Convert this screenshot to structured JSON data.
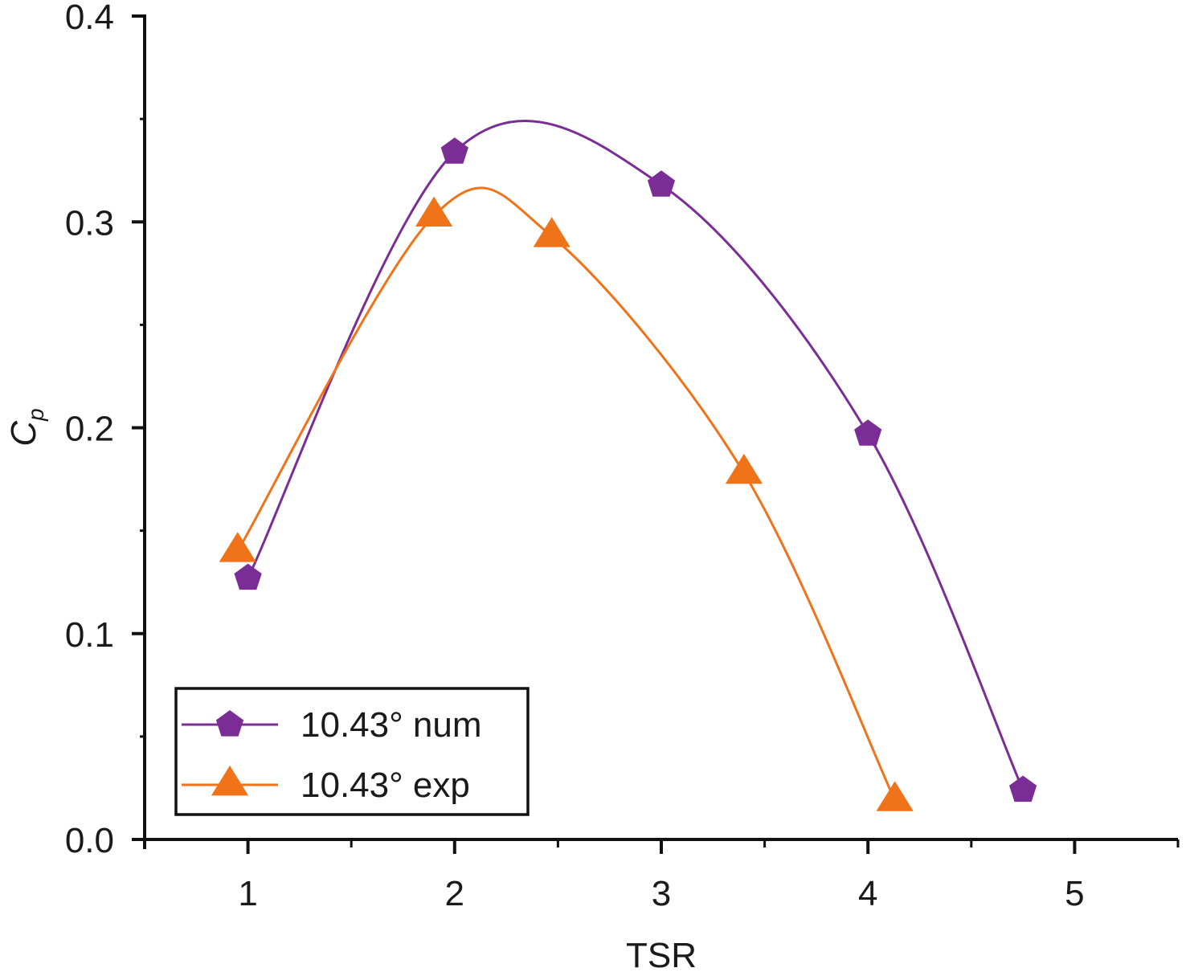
{
  "chart_data": {
    "type": "line",
    "title": "",
    "xlabel": "TSR",
    "ylabel_main": "C",
    "ylabel_sub": "p",
    "xlim": [
      0.5,
      5.5
    ],
    "ylim": [
      0.0,
      0.4
    ],
    "x_ticks": [
      1,
      2,
      3,
      4,
      5
    ],
    "x_tick_labels": [
      "1",
      "2",
      "3",
      "4",
      "5"
    ],
    "x_minor_ticks": [
      0.5,
      1.5,
      2.5,
      3.5,
      4.5,
      5.5
    ],
    "y_ticks": [
      0.0,
      0.1,
      0.2,
      0.3,
      0.4
    ],
    "y_tick_labels": [
      "0.0",
      "0.1",
      "0.2",
      "0.3",
      "0.4"
    ],
    "y_minor_ticks": [
      0.05,
      0.15,
      0.25,
      0.35
    ],
    "grid": false,
    "legend_position": "bottom-left",
    "series": [
      {
        "name": "10.43° num",
        "color": "#7b2d96",
        "marker": "pentagon",
        "smooth": true,
        "x": [
          1.0,
          2.0,
          3.0,
          4.0,
          4.75
        ],
        "y": [
          0.127,
          0.334,
          0.318,
          0.197,
          0.024
        ]
      },
      {
        "name": "10.43° exp",
        "color": "#f07219",
        "marker": "triangle",
        "smooth": true,
        "x": [
          0.95,
          1.9,
          2.47,
          3.4,
          4.13
        ],
        "y": [
          0.14,
          0.303,
          0.293,
          0.178,
          0.019
        ]
      }
    ]
  }
}
